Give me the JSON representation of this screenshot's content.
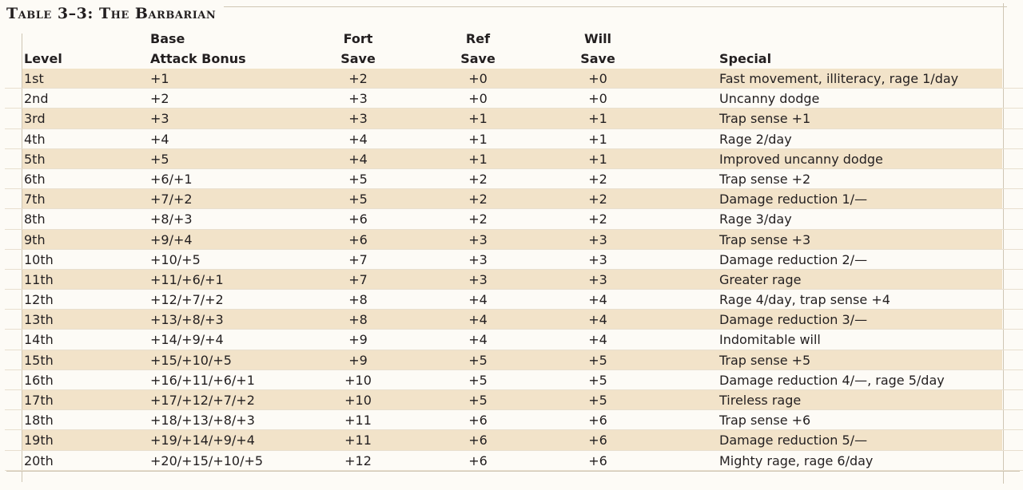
{
  "table": {
    "title": "Table 3–3: The Barbarian",
    "headers": {
      "level": "Level",
      "bab_top": "Base",
      "bab": "Attack Bonus",
      "fort_top": "Fort",
      "fort": "Save",
      "ref_top": "Ref",
      "ref": "Save",
      "will_top": "Will",
      "will": "Save",
      "special": "Special"
    },
    "rows": [
      {
        "level": "1st",
        "bab": "+1",
        "fort": "+2",
        "ref": "+0",
        "will": "+0",
        "special": "Fast movement, illiteracy, rage 1/day"
      },
      {
        "level": "2nd",
        "bab": "+2",
        "fort": "+3",
        "ref": "+0",
        "will": "+0",
        "special": "Uncanny dodge"
      },
      {
        "level": "3rd",
        "bab": "+3",
        "fort": "+3",
        "ref": "+1",
        "will": "+1",
        "special": "Trap sense +1"
      },
      {
        "level": "4th",
        "bab": "+4",
        "fort": "+4",
        "ref": "+1",
        "will": "+1",
        "special": "Rage 2/day"
      },
      {
        "level": "5th",
        "bab": "+5",
        "fort": "+4",
        "ref": "+1",
        "will": "+1",
        "special": "Improved uncanny dodge"
      },
      {
        "level": "6th",
        "bab": "+6/+1",
        "fort": "+5",
        "ref": "+2",
        "will": "+2",
        "special": "Trap sense +2"
      },
      {
        "level": "7th",
        "bab": "+7/+2",
        "fort": "+5",
        "ref": "+2",
        "will": "+2",
        "special": "Damage reduction 1/—"
      },
      {
        "level": "8th",
        "bab": "+8/+3",
        "fort": "+6",
        "ref": "+2",
        "will": "+2",
        "special": "Rage 3/day"
      },
      {
        "level": "9th",
        "bab": "+9/+4",
        "fort": "+6",
        "ref": "+3",
        "will": "+3",
        "special": "Trap sense +3"
      },
      {
        "level": "10th",
        "bab": "+10/+5",
        "fort": "+7",
        "ref": "+3",
        "will": "+3",
        "special": "Damage reduction 2/—"
      },
      {
        "level": "11th",
        "bab": "+11/+6/+1",
        "fort": "+7",
        "ref": "+3",
        "will": "+3",
        "special": "Greater rage"
      },
      {
        "level": "12th",
        "bab": "+12/+7/+2",
        "fort": "+8",
        "ref": "+4",
        "will": "+4",
        "special": "Rage 4/day, trap sense +4"
      },
      {
        "level": "13th",
        "bab": "+13/+8/+3",
        "fort": "+8",
        "ref": "+4",
        "will": "+4",
        "special": "Damage reduction 3/—"
      },
      {
        "level": "14th",
        "bab": "+14/+9/+4",
        "fort": "+9",
        "ref": "+4",
        "will": "+4",
        "special": "Indomitable will"
      },
      {
        "level": "15th",
        "bab": "+15/+10/+5",
        "fort": "+9",
        "ref": "+5",
        "will": "+5",
        "special": "Trap sense +5"
      },
      {
        "level": "16th",
        "bab": "+16/+11/+6/+1",
        "fort": "+10",
        "ref": "+5",
        "will": "+5",
        "special": "Damage reduction 4/—, rage 5/day"
      },
      {
        "level": "17th",
        "bab": "+17/+12/+7/+2",
        "fort": "+10",
        "ref": "+5",
        "will": "+5",
        "special": "Tireless rage"
      },
      {
        "level": "18th",
        "bab": "+18/+13/+8/+3",
        "fort": "+11",
        "ref": "+6",
        "will": "+6",
        "special": "Trap sense +6"
      },
      {
        "level": "19th",
        "bab": "+19/+14/+9/+4",
        "fort": "+11",
        "ref": "+6",
        "will": "+6",
        "special": "Damage reduction 5/—"
      },
      {
        "level": "20th",
        "bab": "+20/+15/+10/+5",
        "fort": "+12",
        "ref": "+6",
        "will": "+6",
        "special": "Mighty rage, rage 6/day"
      }
    ],
    "colors": {
      "shade": "#f2e3c9",
      "paper": "#fdfbf6",
      "text": "#231f20"
    }
  }
}
